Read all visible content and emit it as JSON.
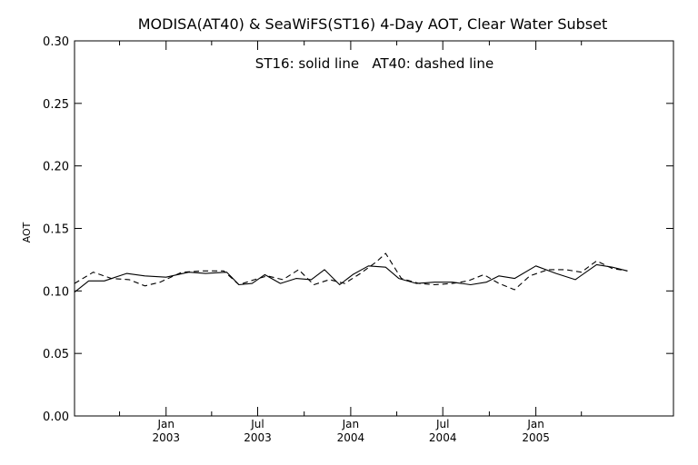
{
  "chart_data": {
    "type": "line",
    "title": "MODISA(AT40) & SeaWiFS(ST16) 4-Day AOT, Clear Water Subset",
    "annotation": "ST16: solid line   AT40: dashed line",
    "xlabel": "",
    "ylabel": "AOT",
    "xlim": [
      "2002-07-04",
      "2005-09-30"
    ],
    "ylim": [
      0.0,
      0.3
    ],
    "yticks": [
      "0.00",
      "0.05",
      "0.10",
      "0.15",
      "0.20",
      "0.25",
      "0.30"
    ],
    "xticks": [
      {
        "date": "2003-01-01",
        "month": "Jan",
        "year": "2003"
      },
      {
        "date": "2003-07-01",
        "month": "Jul",
        "year": "2003"
      },
      {
        "date": "2004-01-01",
        "month": "Jan",
        "year": "2004"
      },
      {
        "date": "2004-07-01",
        "month": "Jul",
        "year": "2004"
      },
      {
        "date": "2005-01-01",
        "month": "Jan",
        "year": "2005"
      }
    ],
    "minor_xticks": [
      "2002-10-01",
      "2003-04-01",
      "2003-10-01",
      "2004-04-01",
      "2004-10-01",
      "2005-04-01"
    ],
    "series": [
      {
        "name": "ST16",
        "line_style": "solid",
        "color": "#000000",
        "points": [
          {
            "x": "2002-07-04",
            "y": 0.099
          },
          {
            "x": "2002-08-01",
            "y": 0.108
          },
          {
            "x": "2002-09-01",
            "y": 0.108
          },
          {
            "x": "2002-10-15",
            "y": 0.114
          },
          {
            "x": "2002-11-20",
            "y": 0.112
          },
          {
            "x": "2003-01-01",
            "y": 0.111
          },
          {
            "x": "2003-02-15",
            "y": 0.115
          },
          {
            "x": "2003-03-20",
            "y": 0.114
          },
          {
            "x": "2003-05-01",
            "y": 0.115
          },
          {
            "x": "2003-05-25",
            "y": 0.105
          },
          {
            "x": "2003-06-20",
            "y": 0.106
          },
          {
            "x": "2003-07-15",
            "y": 0.113
          },
          {
            "x": "2003-08-15",
            "y": 0.106
          },
          {
            "x": "2003-09-15",
            "y": 0.11
          },
          {
            "x": "2003-10-15",
            "y": 0.109
          },
          {
            "x": "2003-11-10",
            "y": 0.117
          },
          {
            "x": "2003-12-10",
            "y": 0.105
          },
          {
            "x": "2004-01-05",
            "y": 0.113
          },
          {
            "x": "2004-02-05",
            "y": 0.12
          },
          {
            "x": "2004-03-10",
            "y": 0.119
          },
          {
            "x": "2004-04-05",
            "y": 0.11
          },
          {
            "x": "2004-05-10",
            "y": 0.106
          },
          {
            "x": "2004-06-15",
            "y": 0.107
          },
          {
            "x": "2004-07-20",
            "y": 0.107
          },
          {
            "x": "2004-08-25",
            "y": 0.105
          },
          {
            "x": "2004-09-25",
            "y": 0.107
          },
          {
            "x": "2004-10-20",
            "y": 0.112
          },
          {
            "x": "2004-11-20",
            "y": 0.11
          },
          {
            "x": "2005-01-01",
            "y": 0.12
          },
          {
            "x": "2005-02-10",
            "y": 0.114
          },
          {
            "x": "2005-03-20",
            "y": 0.109
          },
          {
            "x": "2005-05-01",
            "y": 0.121
          },
          {
            "x": "2005-06-01",
            "y": 0.119
          },
          {
            "x": "2005-07-01",
            "y": 0.116
          }
        ]
      },
      {
        "name": "AT40",
        "line_style": "dashed",
        "color": "#000000",
        "points": [
          {
            "x": "2002-07-04",
            "y": 0.106
          },
          {
            "x": "2002-08-10",
            "y": 0.115
          },
          {
            "x": "2002-09-15",
            "y": 0.11
          },
          {
            "x": "2002-10-20",
            "y": 0.109
          },
          {
            "x": "2002-11-20",
            "y": 0.104
          },
          {
            "x": "2002-12-20",
            "y": 0.107
          },
          {
            "x": "2003-02-01",
            "y": 0.115
          },
          {
            "x": "2003-03-15",
            "y": 0.116
          },
          {
            "x": "2003-04-25",
            "y": 0.116
          },
          {
            "x": "2003-05-25",
            "y": 0.105
          },
          {
            "x": "2003-06-25",
            "y": 0.109
          },
          {
            "x": "2003-07-20",
            "y": 0.112
          },
          {
            "x": "2003-08-20",
            "y": 0.109
          },
          {
            "x": "2003-09-20",
            "y": 0.117
          },
          {
            "x": "2003-10-20",
            "y": 0.105
          },
          {
            "x": "2003-11-20",
            "y": 0.109
          },
          {
            "x": "2003-12-20",
            "y": 0.106
          },
          {
            "x": "2004-01-20",
            "y": 0.114
          },
          {
            "x": "2004-02-20",
            "y": 0.123
          },
          {
            "x": "2004-03-10",
            "y": 0.13
          },
          {
            "x": "2004-04-10",
            "y": 0.11
          },
          {
            "x": "2004-05-15",
            "y": 0.106
          },
          {
            "x": "2004-06-15",
            "y": 0.105
          },
          {
            "x": "2004-07-20",
            "y": 0.106
          },
          {
            "x": "2004-08-20",
            "y": 0.108
          },
          {
            "x": "2004-09-20",
            "y": 0.113
          },
          {
            "x": "2004-10-20",
            "y": 0.106
          },
          {
            "x": "2004-11-20",
            "y": 0.101
          },
          {
            "x": "2004-12-20",
            "y": 0.112
          },
          {
            "x": "2005-01-25",
            "y": 0.117
          },
          {
            "x": "2005-03-01",
            "y": 0.117
          },
          {
            "x": "2005-04-01",
            "y": 0.115
          },
          {
            "x": "2005-05-01",
            "y": 0.124
          },
          {
            "x": "2005-06-01",
            "y": 0.118
          },
          {
            "x": "2005-07-01",
            "y": 0.116
          }
        ]
      }
    ]
  }
}
